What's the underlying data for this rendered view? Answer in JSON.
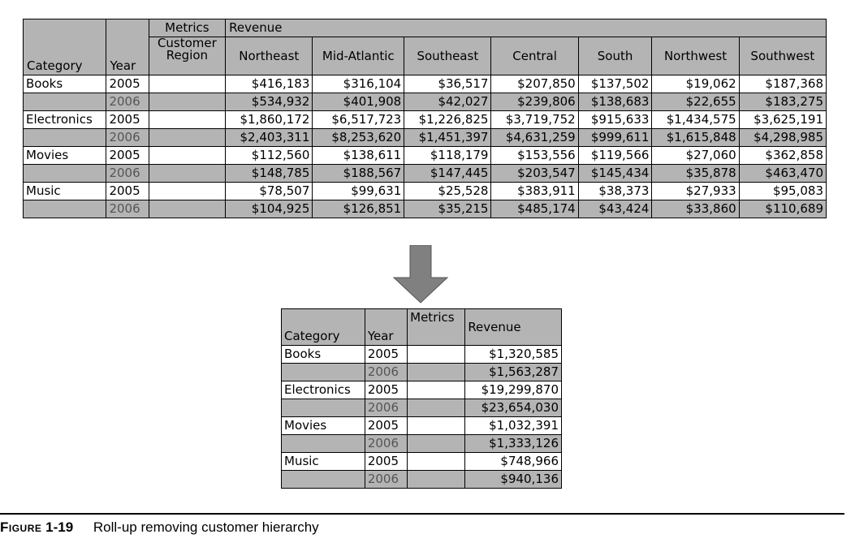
{
  "top_table": {
    "header": {
      "metrics": "Metrics",
      "revenue": "Revenue",
      "customer_region": "Customer\nRegion",
      "category": "Category",
      "year": "Year",
      "regions": [
        "Northeast",
        "Mid-Atlantic",
        "Southeast",
        "Central",
        "South",
        "Northwest",
        "Southwest"
      ]
    },
    "rows": [
      {
        "category": "Books",
        "year": "2005",
        "values": [
          "$416,183",
          "$316,104",
          "$36,517",
          "$207,850",
          "$137,502",
          "$19,062",
          "$187,368"
        ]
      },
      {
        "category": "",
        "year": "2006",
        "values": [
          "$534,932",
          "$401,908",
          "$42,027",
          "$239,806",
          "$138,683",
          "$22,655",
          "$183,275"
        ]
      },
      {
        "category": "Electronics",
        "year": "2005",
        "values": [
          "$1,860,172",
          "$6,517,723",
          "$1,226,825",
          "$3,719,752",
          "$915,633",
          "$1,434,575",
          "$3,625,191"
        ]
      },
      {
        "category": "",
        "year": "2006",
        "values": [
          "$2,403,311",
          "$8,253,620",
          "$1,451,397",
          "$4,631,259",
          "$999,611",
          "$1,615,848",
          "$4,298,985"
        ]
      },
      {
        "category": "Movies",
        "year": "2005",
        "values": [
          "$112,560",
          "$138,611",
          "$118,179",
          "$153,556",
          "$119,566",
          "$27,060",
          "$362,858"
        ]
      },
      {
        "category": "",
        "year": "2006",
        "values": [
          "$148,785",
          "$188,567",
          "$147,445",
          "$203,547",
          "$145,434",
          "$35,878",
          "$463,470"
        ]
      },
      {
        "category": "Music",
        "year": "2005",
        "values": [
          "$78,507",
          "$99,631",
          "$25,528",
          "$383,911",
          "$38,373",
          "$27,933",
          "$95,083"
        ]
      },
      {
        "category": "",
        "year": "2006",
        "values": [
          "$104,925",
          "$126,851",
          "$35,215",
          "$485,174",
          "$43,424",
          "$33,860",
          "$110,689"
        ]
      }
    ]
  },
  "bottom_table": {
    "header": {
      "category": "Category",
      "year": "Year",
      "metrics": "Metrics",
      "revenue": "Revenue"
    },
    "rows": [
      {
        "category": "Books",
        "year": "2005",
        "revenue": "$1,320,585"
      },
      {
        "category": "",
        "year": "2006",
        "revenue": "$1,563,287"
      },
      {
        "category": "Electronics",
        "year": "2005",
        "revenue": "$19,299,870"
      },
      {
        "category": "",
        "year": "2006",
        "revenue": "$23,654,030"
      },
      {
        "category": "Movies",
        "year": "2005",
        "revenue": "$1,032,391"
      },
      {
        "category": "",
        "year": "2006",
        "revenue": "$1,333,126"
      },
      {
        "category": "Music",
        "year": "2005",
        "revenue": "$748,966"
      },
      {
        "category": "",
        "year": "2006",
        "revenue": "$940,136"
      }
    ]
  },
  "caption": {
    "label": "Figure",
    "number": "1-19",
    "text": "Roll-up removing customer hierarchy"
  },
  "colors": {
    "header_shade": "#b4b4b4",
    "arrow": "#808080"
  }
}
